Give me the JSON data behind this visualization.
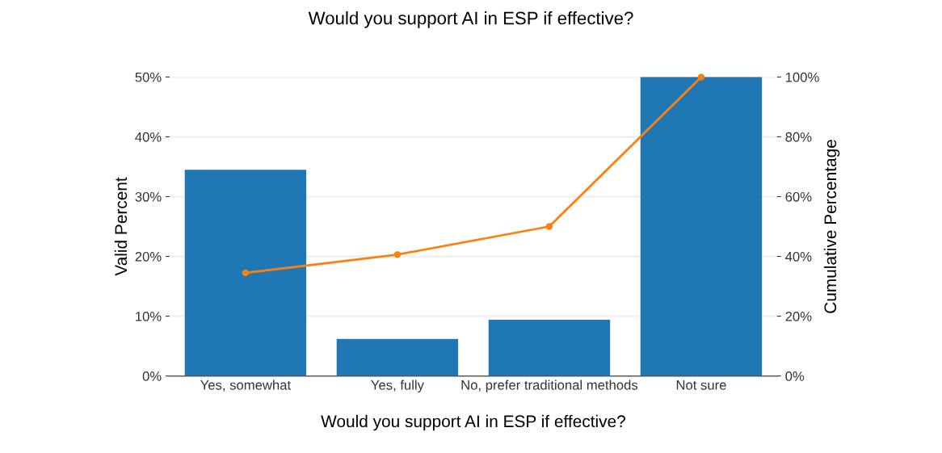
{
  "chart_data": {
    "type": "bar",
    "title": "Would you support AI in ESP if effective?",
    "xlabel": "Would you support AI in ESP if effective?",
    "ylabel": "Valid Percent",
    "y2label": "Cumulative Percentage",
    "categories": [
      "Yes, somewhat",
      "Yes, fully",
      "No, prefer traditional methods",
      "Not sure"
    ],
    "series": [
      {
        "color": "#1f77b4",
        "values": [
          34.5,
          6.2,
          9.4,
          50
        ]
      },
      {
        "type": "line",
        "axis": "y2",
        "color": "#ff7f0e",
        "marker": "circle",
        "values": [
          34.5,
          40.6,
          50,
          100
        ]
      }
    ],
    "ylim": [
      0,
      50
    ],
    "yticks": [
      {
        "value": 0,
        "label": "0%"
      },
      {
        "value": 10,
        "label": "10%"
      },
      {
        "value": 20,
        "label": "20%"
      },
      {
        "value": 30,
        "label": "30%"
      },
      {
        "value": 40,
        "label": "40%"
      },
      {
        "value": 50,
        "label": "50%"
      }
    ],
    "y2lim": [
      0,
      100
    ],
    "y2ticks": [
      {
        "value": 0,
        "label": "0%"
      },
      {
        "value": 20,
        "label": "20%"
      },
      {
        "value": 40,
        "label": "40%"
      },
      {
        "value": 60,
        "label": "60%"
      },
      {
        "value": 80,
        "label": "80%"
      },
      {
        "value": 100,
        "label": "100%"
      }
    ],
    "grid": "y"
  }
}
